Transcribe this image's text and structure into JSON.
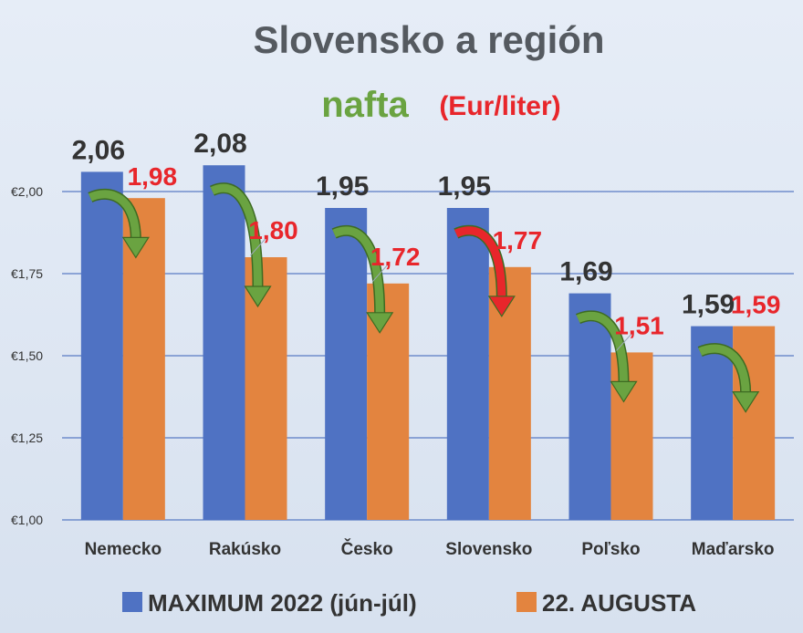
{
  "chart_data": {
    "type": "bar",
    "title": "Slovensko a región",
    "subtitle": "nafta",
    "unit": "(Eur/liter)",
    "categories": [
      "Nemecko",
      "Rakúsko",
      "Česko",
      "Slovensko",
      "Poľsko",
      "Maďarsko"
    ],
    "series": [
      {
        "name": "MAXIMUM 2022 (jún-júl)",
        "values": [
          2.06,
          2.08,
          1.95,
          1.95,
          1.69,
          1.59
        ],
        "labels": [
          "2,06",
          "2,08",
          "1,95",
          "1,95",
          "1,69",
          "1,59"
        ],
        "color": "#4f72c3"
      },
      {
        "name": "22. AUGUSTA",
        "values": [
          1.98,
          1.8,
          1.72,
          1.77,
          1.51,
          1.59
        ],
        "labels": [
          "1,98",
          "1,80",
          "1,72",
          "1,77",
          "1,51",
          "1,59"
        ],
        "color": "#e3843f"
      }
    ],
    "ylim": [
      1.0,
      2.0
    ],
    "yticks": [
      1.0,
      1.25,
      1.5,
      1.75,
      2.0
    ],
    "ytick_labels": [
      "€1,00",
      "€1,25",
      "€1,50",
      "€1,75",
      "€2,00"
    ],
    "grid": true,
    "legend_position": "bottom",
    "arrows": [
      "green",
      "green",
      "green",
      "red",
      "green",
      "green"
    ],
    "arrow_colors": {
      "green": "#6aa341",
      "red": "#e8262b"
    },
    "colors": {
      "title": "#555a60",
      "subtitle": "#6aa341",
      "unit": "#e8262b",
      "label_b": "#e8262b",
      "grid": "#5a7bc4"
    }
  }
}
